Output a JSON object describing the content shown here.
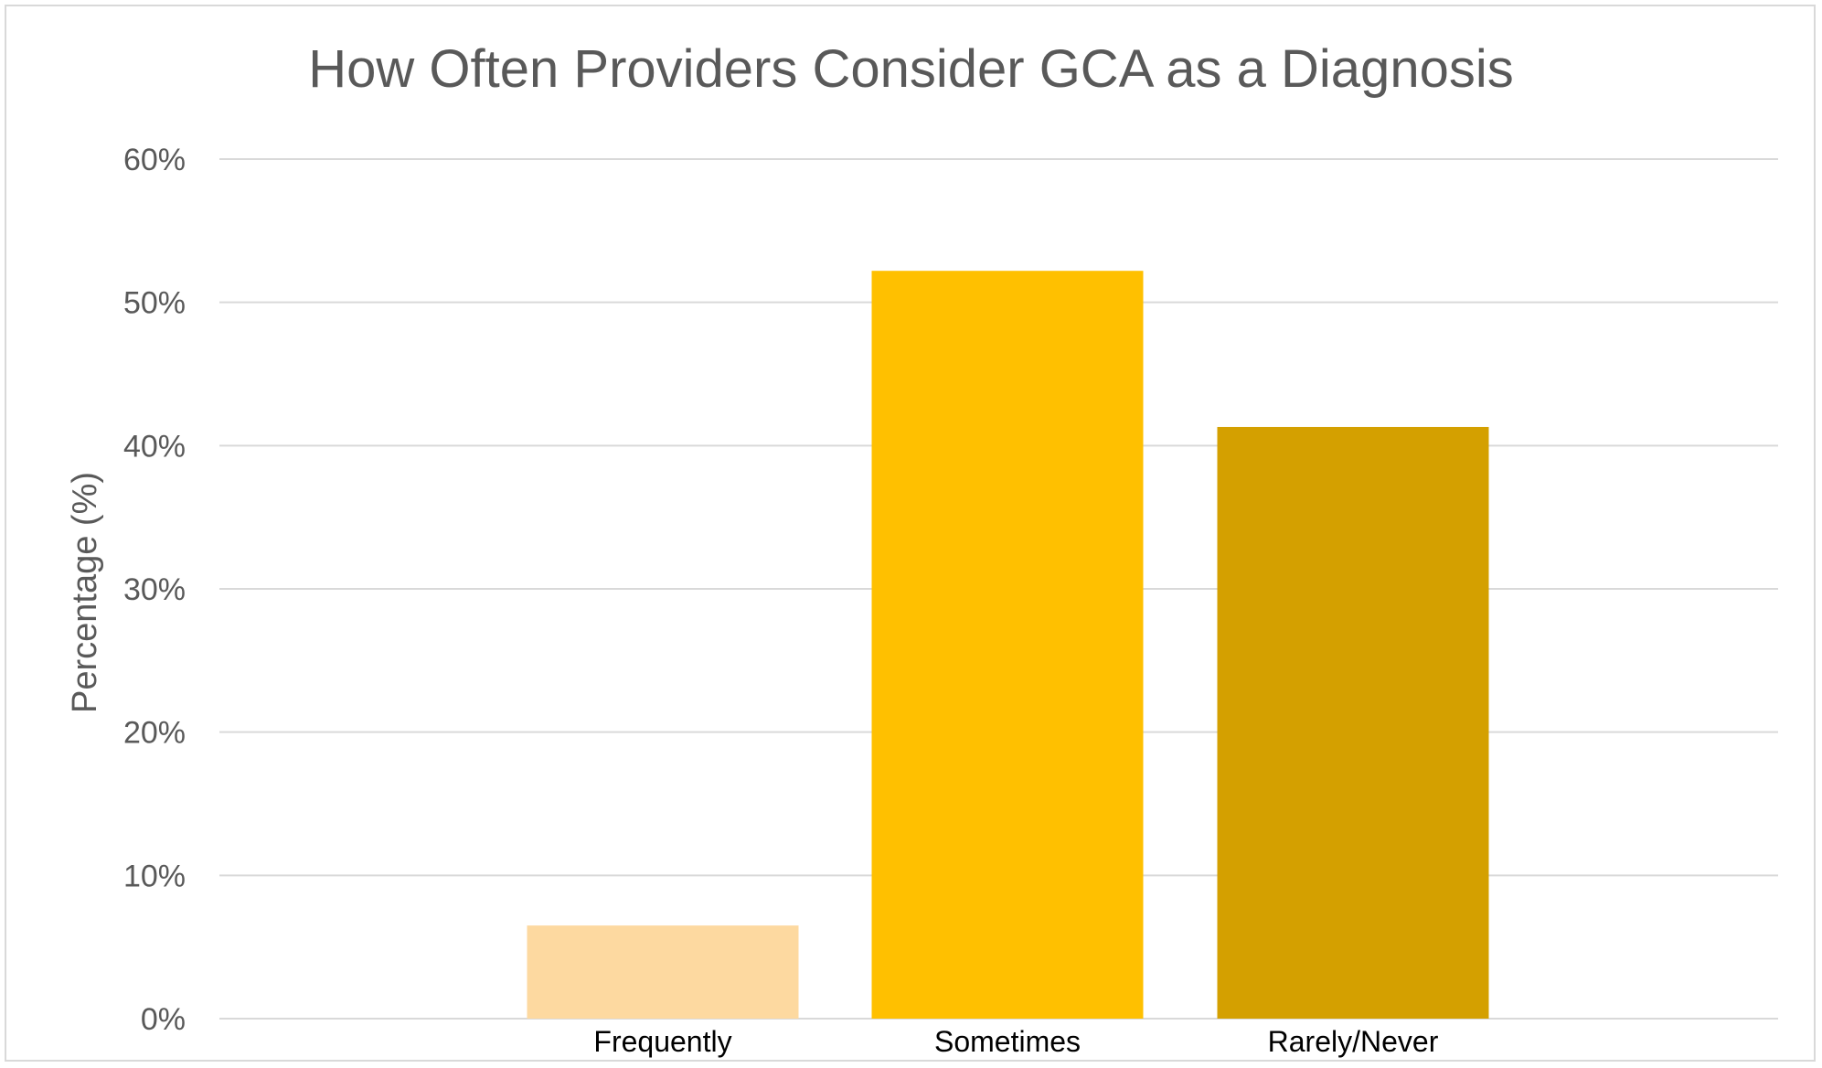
{
  "chart_data": {
    "type": "bar",
    "title": "How Often Providers Consider GCA as a Diagnosis",
    "xlabel": "",
    "ylabel": "Percentage (%)",
    "categories": [
      "Frequently",
      "Sometimes",
      "Rarely/Never"
    ],
    "values": [
      6.5,
      52.2,
      41.3
    ],
    "colors": [
      "#fdd9a0",
      "#ffc000",
      "#d4a000"
    ],
    "ylim": [
      0,
      60
    ],
    "yticks": [
      0,
      10,
      20,
      30,
      40,
      50,
      60
    ],
    "ytick_labels": [
      "0%",
      "10%",
      "20%",
      "30%",
      "40%",
      "50%",
      "60%"
    ],
    "grid": true,
    "legend": "none",
    "gridline_color": "#d9d9d9"
  }
}
